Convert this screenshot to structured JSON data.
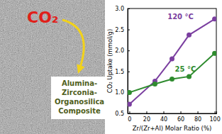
{
  "chart_data": {
    "type": "line",
    "xlabel": "Zr/(Zr+Al) Molar Ratio (%)",
    "ylabel": "CO₂ Uptake (mmol/g)",
    "x": [
      0,
      30,
      50,
      70,
      100
    ],
    "series": [
      {
        "name": "120 °C",
        "color": "#7b3fa0",
        "marker": "circle",
        "values": [
          0.72,
          1.27,
          1.8,
          2.37,
          2.75
        ]
      },
      {
        "name": "25 °C",
        "color": "#2e8b2e",
        "marker": "circle",
        "values": [
          1.0,
          1.2,
          1.32,
          1.38,
          1.93
        ]
      }
    ],
    "xlim": [
      -2,
      102
    ],
    "xticks": [
      0,
      20,
      40,
      60,
      80,
      100
    ],
    "ylim": [
      0.5,
      3.0
    ],
    "yticks": [
      0.5,
      {
        "value": 1,
        "label": "1.0"
      },
      1.5,
      {
        "value": 2,
        "label": "2.0"
      },
      2.5,
      {
        "value": 3,
        "label": "3.0"
      }
    ],
    "grid": false
  },
  "image": {
    "label": "CO₂",
    "caption": [
      "Alumina-",
      "Zirconia-",
      "Organosilica",
      "Composite"
    ]
  }
}
